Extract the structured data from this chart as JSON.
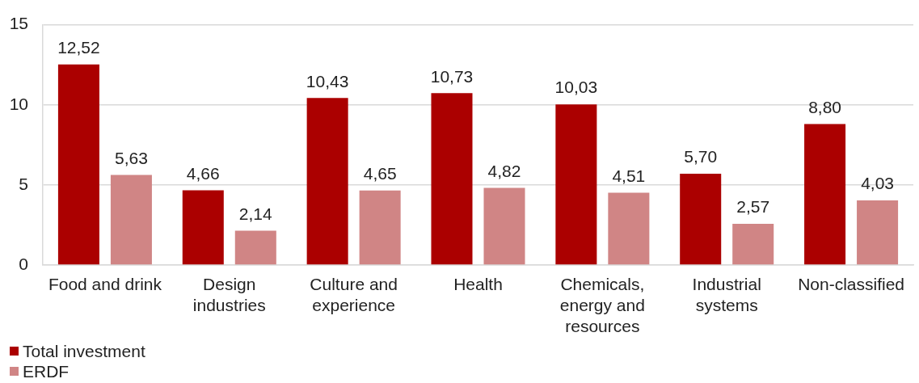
{
  "chart_data": {
    "type": "bar",
    "categories": [
      "Food and drink",
      "Design industries",
      "Culture and experience",
      "Health",
      "Chemicals, energy and resources",
      "Industrial systems",
      "Non-classified"
    ],
    "series": [
      {
        "name": "Total investment",
        "color": "#ab0000",
        "values": [
          12.52,
          4.66,
          10.43,
          10.73,
          10.03,
          5.7,
          8.8
        ],
        "value_labels": [
          "12,52",
          "4,66",
          "10,43",
          "10,73",
          "10,03",
          "5,70",
          "8,80"
        ]
      },
      {
        "name": "ERDF",
        "color": "#d08585",
        "values": [
          5.63,
          2.14,
          4.65,
          4.82,
          4.51,
          2.57,
          4.03
        ],
        "value_labels": [
          "5,63",
          "2,14",
          "4,65",
          "4,82",
          "4,51",
          "2,57",
          "4,03"
        ]
      }
    ],
    "ylim": [
      0,
      15
    ],
    "yticks": [
      0,
      5,
      10,
      15
    ],
    "grid": "y",
    "legend": "bottom"
  }
}
